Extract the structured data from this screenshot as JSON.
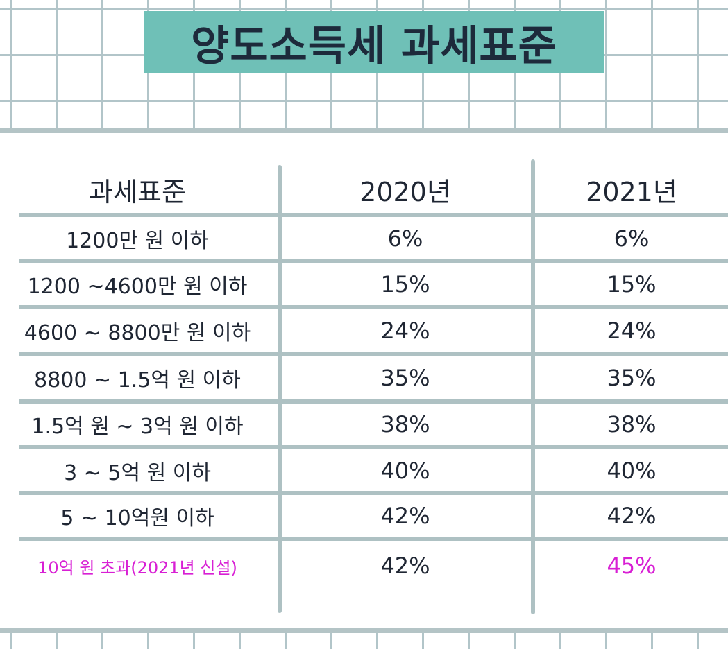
{
  "title": "양도소득세 과세표준",
  "table": {
    "headers": [
      "과세표준",
      "2020년",
      "2021년"
    ],
    "rows": [
      {
        "bracket": "1200만 원 이하",
        "y2020": "6%",
        "y2021": "6%"
      },
      {
        "bracket": "1200 ~4600만 원 이하",
        "y2020": "15%",
        "y2021": "15%"
      },
      {
        "bracket": "4600 ~ 8800만 원 이하",
        "y2020": "24%",
        "y2021": "24%"
      },
      {
        "bracket": "8800 ~ 1.5억 원 이하",
        "y2020": "35%",
        "y2021": "35%"
      },
      {
        "bracket": "1.5억 원 ~ 3억 원 이하",
        "y2020": "38%",
        "y2021": "38%"
      },
      {
        "bracket": "3 ~ 5억 원 이하",
        "y2020": "40%",
        "y2021": "40%"
      },
      {
        "bracket": "5 ~ 10억원 이하",
        "y2020": "42%",
        "y2021": "42%"
      },
      {
        "bracket": "10억 원 초과(2021년 신설)",
        "y2020": "42%",
        "y2021": "45%"
      }
    ]
  },
  "colors": {
    "title_background": "#6fc0b7",
    "highlight": "#d81fd4",
    "grid": "#b2c5c9"
  }
}
